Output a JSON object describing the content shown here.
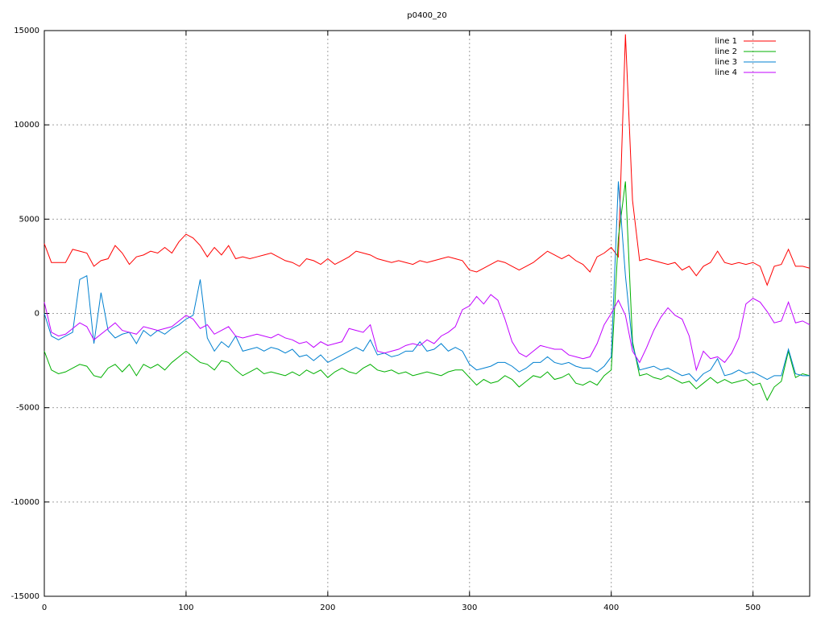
{
  "chart_data": {
    "type": "line",
    "title": "p0400_20",
    "x": [
      0,
      5,
      10,
      15,
      20,
      25,
      30,
      35,
      40,
      45,
      50,
      55,
      60,
      65,
      70,
      75,
      80,
      85,
      90,
      95,
      100,
      105,
      110,
      115,
      120,
      125,
      130,
      135,
      140,
      145,
      150,
      155,
      160,
      165,
      170,
      175,
      180,
      185,
      190,
      195,
      200,
      205,
      210,
      215,
      220,
      225,
      230,
      235,
      240,
      245,
      250,
      255,
      260,
      265,
      270,
      275,
      280,
      285,
      290,
      295,
      300,
      305,
      310,
      315,
      320,
      325,
      330,
      335,
      340,
      345,
      350,
      355,
      360,
      365,
      370,
      375,
      380,
      385,
      390,
      395,
      400,
      405,
      410,
      415,
      420,
      425,
      430,
      435,
      440,
      445,
      450,
      455,
      460,
      465,
      470,
      475,
      480,
      485,
      490,
      495,
      500,
      505,
      510,
      515,
      520,
      525,
      530,
      535,
      540
    ],
    "series": [
      {
        "name": "line 1",
        "color": "#ff0000",
        "values": [
          3700,
          2700,
          2700,
          2700,
          3400,
          3300,
          3200,
          2500,
          2800,
          2900,
          3600,
          3200,
          2600,
          3000,
          3100,
          3300,
          3200,
          3500,
          3200,
          3800,
          4200,
          4000,
          3600,
          3000,
          3500,
          3100,
          3600,
          2900,
          3000,
          2900,
          3000,
          3100,
          3200,
          3000,
          2800,
          2700,
          2500,
          2900,
          2800,
          2600,
          2900,
          2600,
          2800,
          3000,
          3300,
          3200,
          3100,
          2900,
          2800,
          2700,
          2800,
          2700,
          2600,
          2800,
          2700,
          2800,
          2900,
          3000,
          2900,
          2800,
          2300,
          2200,
          2400,
          2600,
          2800,
          2700,
          2500,
          2300,
          2500,
          2700,
          3000,
          3300,
          3100,
          2900,
          3100,
          2800,
          2600,
          2200,
          3000,
          3200,
          3500,
          3000,
          14800,
          6000,
          2800,
          2900,
          2800,
          2700,
          2600,
          2700,
          2300,
          2500,
          2000,
          2500,
          2700,
          3300,
          2700,
          2600,
          2700,
          2600,
          2700,
          2500,
          1500,
          2500,
          2600,
          3400,
          2500,
          2500,
          2400
        ]
      },
      {
        "name": "line 2",
        "color": "#00b000",
        "values": [
          -2000,
          -3000,
          -3200,
          -3100,
          -2900,
          -2700,
          -2800,
          -3300,
          -3400,
          -2900,
          -2700,
          -3100,
          -2700,
          -3300,
          -2700,
          -2900,
          -2700,
          -3000,
          -2600,
          -2300,
          -2000,
          -2300,
          -2600,
          -2700,
          -3000,
          -2500,
          -2600,
          -3000,
          -3300,
          -3100,
          -2900,
          -3200,
          -3100,
          -3200,
          -3300,
          -3100,
          -3300,
          -3000,
          -3200,
          -3000,
          -3400,
          -3100,
          -2900,
          -3100,
          -3200,
          -2900,
          -2700,
          -3000,
          -3100,
          -3000,
          -3200,
          -3100,
          -3300,
          -3200,
          -3100,
          -3200,
          -3300,
          -3100,
          -3000,
          -3000,
          -3400,
          -3800,
          -3500,
          -3700,
          -3600,
          -3300,
          -3500,
          -3900,
          -3600,
          -3300,
          -3400,
          -3100,
          -3500,
          -3400,
          -3200,
          -3700,
          -3800,
          -3600,
          -3800,
          -3300,
          -3000,
          4000,
          7000,
          -1500,
          -3300,
          -3200,
          -3400,
          -3500,
          -3300,
          -3500,
          -3700,
          -3600,
          -4000,
          -3700,
          -3400,
          -3700,
          -3500,
          -3700,
          -3600,
          -3500,
          -3800,
          -3700,
          -4600,
          -3900,
          -3600,
          -2000,
          -3400,
          -3200,
          -3300
        ]
      },
      {
        "name": "line 3",
        "color": "#0080d0",
        "values": [
          0,
          -1200,
          -1400,
          -1200,
          -1000,
          1800,
          2000,
          -1600,
          1100,
          -900,
          -1300,
          -1100,
          -1000,
          -1600,
          -900,
          -1200,
          -900,
          -1100,
          -800,
          -600,
          -300,
          -100,
          1800,
          -1300,
          -2000,
          -1500,
          -1800,
          -1200,
          -2000,
          -1900,
          -1800,
          -2000,
          -1800,
          -1900,
          -2100,
          -1900,
          -2300,
          -2200,
          -2500,
          -2200,
          -2600,
          -2400,
          -2200,
          -2000,
          -1800,
          -2000,
          -1400,
          -2200,
          -2100,
          -2300,
          -2200,
          -2000,
          -2000,
          -1500,
          -2000,
          -1900,
          -1600,
          -2000,
          -1800,
          -2000,
          -2700,
          -3000,
          -2900,
          -2800,
          -2600,
          -2600,
          -2800,
          -3100,
          -2900,
          -2600,
          -2600,
          -2300,
          -2600,
          -2700,
          -2600,
          -2800,
          -2900,
          -2900,
          -3100,
          -2800,
          -2300,
          7000,
          2000,
          -1700,
          -3000,
          -2900,
          -2800,
          -3000,
          -2900,
          -3100,
          -3300,
          -3200,
          -3600,
          -3200,
          -3000,
          -2400,
          -3300,
          -3200,
          -3000,
          -3200,
          -3100,
          -3300,
          -3500,
          -3300,
          -3300,
          -1900,
          -3200,
          -3300,
          -3300
        ]
      },
      {
        "name": "line 4",
        "color": "#c000ff",
        "values": [
          600,
          -1000,
          -1200,
          -1100,
          -800,
          -500,
          -700,
          -1400,
          -1100,
          -800,
          -500,
          -900,
          -1000,
          -1100,
          -700,
          -800,
          -900,
          -800,
          -700,
          -400,
          -100,
          -300,
          -800,
          -600,
          -1100,
          -900,
          -700,
          -1200,
          -1300,
          -1200,
          -1100,
          -1200,
          -1300,
          -1100,
          -1300,
          -1400,
          -1600,
          -1500,
          -1800,
          -1500,
          -1700,
          -1600,
          -1500,
          -800,
          -900,
          -1000,
          -600,
          -2000,
          -2100,
          -2000,
          -1900,
          -1700,
          -1600,
          -1700,
          -1400,
          -1600,
          -1200,
          -1000,
          -700,
          200,
          400,
          900,
          500,
          1000,
          700,
          -300,
          -1500,
          -2100,
          -2300,
          -2000,
          -1700,
          -1800,
          -1900,
          -1900,
          -2200,
          -2300,
          -2400,
          -2300,
          -1600,
          -600,
          0,
          700,
          -100,
          -2000,
          -2600,
          -1800,
          -900,
          -200,
          300,
          -100,
          -300,
          -1200,
          -3000,
          -2000,
          -2400,
          -2300,
          -2600,
          -2100,
          -1300,
          500,
          800,
          600,
          100,
          -500,
          -400,
          600,
          -500,
          -400,
          -600
        ]
      }
    ],
    "xlim": [
      0,
      540
    ],
    "xticks": [
      0,
      100,
      200,
      300,
      400,
      500
    ],
    "ylim": [
      -15000,
      15000
    ],
    "yticks": [
      -15000,
      -10000,
      -5000,
      0,
      5000,
      10000,
      15000
    ],
    "grid": true,
    "legend": "top-right"
  }
}
